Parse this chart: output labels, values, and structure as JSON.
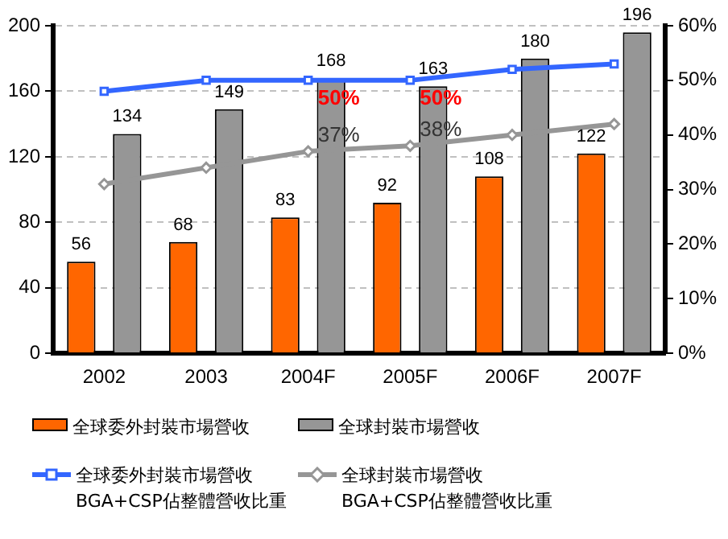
{
  "chart_data": {
    "type": "bar",
    "categories": [
      "2002",
      "2003",
      "2004F",
      "2005F",
      "2006F",
      "2007F"
    ],
    "ylim": [
      0,
      200
    ],
    "yticks": [
      0,
      40,
      80,
      120,
      160,
      200
    ],
    "y2lim": [
      0,
      60
    ],
    "y2ticks": [
      {
        "value": 0,
        "label": "0%"
      },
      {
        "value": 10,
        "label": "10%"
      },
      {
        "value": 20,
        "label": "20%"
      },
      {
        "value": 30,
        "label": "30%"
      },
      {
        "value": 40,
        "label": "40%"
      },
      {
        "value": 50,
        "label": "50%"
      },
      {
        "value": 60,
        "label": "60%"
      }
    ],
    "grid": "y",
    "legend": "bottom",
    "series": [
      {
        "name": "全球委外封裝市場營收",
        "color": "#ff6600",
        "values": [
          56,
          68,
          83,
          92,
          108,
          122
        ],
        "value_labels": [
          "56",
          "68",
          "83",
          "92",
          "108",
          "122"
        ]
      },
      {
        "name": "全球封裝市場營收",
        "color": "#969696",
        "values": [
          134,
          149,
          168,
          163,
          180,
          196
        ],
        "value_labels": [
          "134",
          "149",
          "168",
          "163",
          "180",
          "196"
        ]
      },
      {
        "type": "line",
        "axis": "y2",
        "marker": "square",
        "name": "全球委外封裝市場營收 BGA+CSP佔整體營收比重",
        "color": "#3366ff",
        "values": [
          48,
          50,
          50,
          50,
          52,
          53
        ],
        "value_labels": [
          null,
          null,
          "50%",
          "50%",
          null,
          null
        ]
      },
      {
        "type": "line",
        "axis": "y2",
        "marker": "diamond",
        "name": "全球封裝市場營收 BGA+CSP佔整體營收比重",
        "color": "#969696",
        "values": [
          31,
          34,
          37,
          38,
          40,
          42
        ],
        "value_labels": [
          null,
          null,
          "37%",
          "38%",
          null,
          null
        ]
      }
    ]
  }
}
